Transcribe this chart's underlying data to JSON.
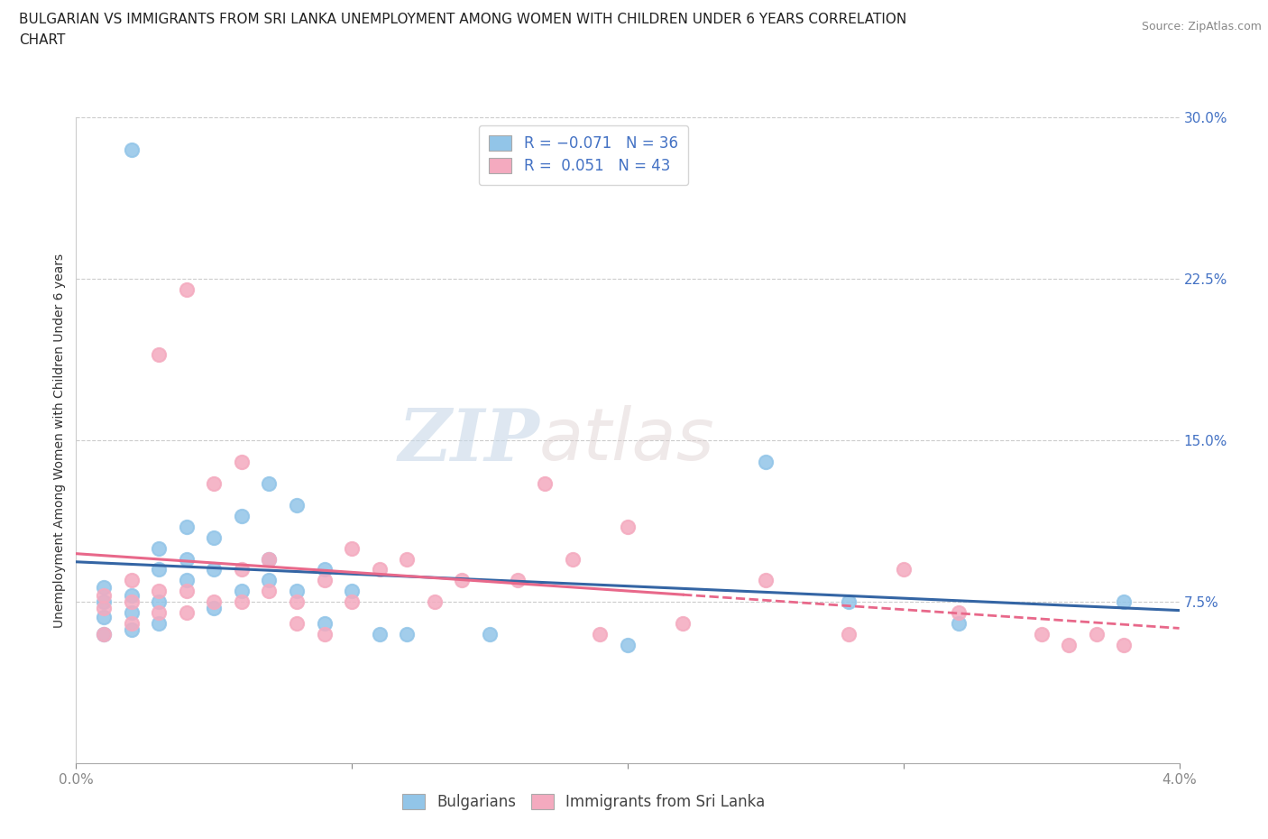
{
  "title_line1": "BULGARIAN VS IMMIGRANTS FROM SRI LANKA UNEMPLOYMENT AMONG WOMEN WITH CHILDREN UNDER 6 YEARS CORRELATION",
  "title_line2": "CHART",
  "source": "Source: ZipAtlas.com",
  "ylabel": "Unemployment Among Women with Children Under 6 years",
  "xlim": [
    0.0,
    0.04
  ],
  "ylim": [
    0.0,
    0.3
  ],
  "xticks": [
    0.0,
    0.01,
    0.02,
    0.03,
    0.04
  ],
  "xticklabels": [
    "0.0%",
    "",
    "",
    "",
    "4.0%"
  ],
  "yticks": [
    0.075,
    0.15,
    0.225,
    0.3
  ],
  "yticklabels": [
    "7.5%",
    "15.0%",
    "22.5%",
    "30.0%"
  ],
  "blue_color": "#92C5E8",
  "pink_color": "#F4AABF",
  "trend_blue": "#3465A4",
  "trend_pink": "#E8688A",
  "watermark_zip": "ZIP",
  "watermark_atlas": "atlas",
  "bulgarians_x": [
    0.001,
    0.001,
    0.001,
    0.001,
    0.002,
    0.002,
    0.002,
    0.002,
    0.003,
    0.003,
    0.003,
    0.003,
    0.004,
    0.004,
    0.004,
    0.005,
    0.005,
    0.005,
    0.006,
    0.006,
    0.007,
    0.007,
    0.007,
    0.008,
    0.008,
    0.009,
    0.009,
    0.01,
    0.011,
    0.012,
    0.015,
    0.02,
    0.025,
    0.028,
    0.032,
    0.038
  ],
  "bulgarians_y": [
    0.06,
    0.068,
    0.075,
    0.082,
    0.062,
    0.07,
    0.078,
    0.285,
    0.065,
    0.075,
    0.09,
    0.1,
    0.085,
    0.095,
    0.11,
    0.072,
    0.09,
    0.105,
    0.08,
    0.115,
    0.085,
    0.095,
    0.13,
    0.08,
    0.12,
    0.065,
    0.09,
    0.08,
    0.06,
    0.06,
    0.06,
    0.055,
    0.14,
    0.075,
    0.065,
    0.075
  ],
  "srilanka_x": [
    0.001,
    0.001,
    0.001,
    0.002,
    0.002,
    0.002,
    0.003,
    0.003,
    0.003,
    0.004,
    0.004,
    0.004,
    0.005,
    0.005,
    0.006,
    0.006,
    0.006,
    0.007,
    0.007,
    0.008,
    0.008,
    0.009,
    0.009,
    0.01,
    0.01,
    0.011,
    0.012,
    0.013,
    0.014,
    0.016,
    0.017,
    0.018,
    0.019,
    0.02,
    0.022,
    0.025,
    0.028,
    0.03,
    0.032,
    0.035,
    0.036,
    0.037,
    0.038
  ],
  "srilanka_y": [
    0.06,
    0.072,
    0.078,
    0.065,
    0.075,
    0.085,
    0.07,
    0.08,
    0.19,
    0.07,
    0.08,
    0.22,
    0.075,
    0.13,
    0.075,
    0.09,
    0.14,
    0.08,
    0.095,
    0.065,
    0.075,
    0.06,
    0.085,
    0.075,
    0.1,
    0.09,
    0.095,
    0.075,
    0.085,
    0.085,
    0.13,
    0.095,
    0.06,
    0.11,
    0.065,
    0.085,
    0.06,
    0.09,
    0.07,
    0.06,
    0.055,
    0.06,
    0.055
  ]
}
